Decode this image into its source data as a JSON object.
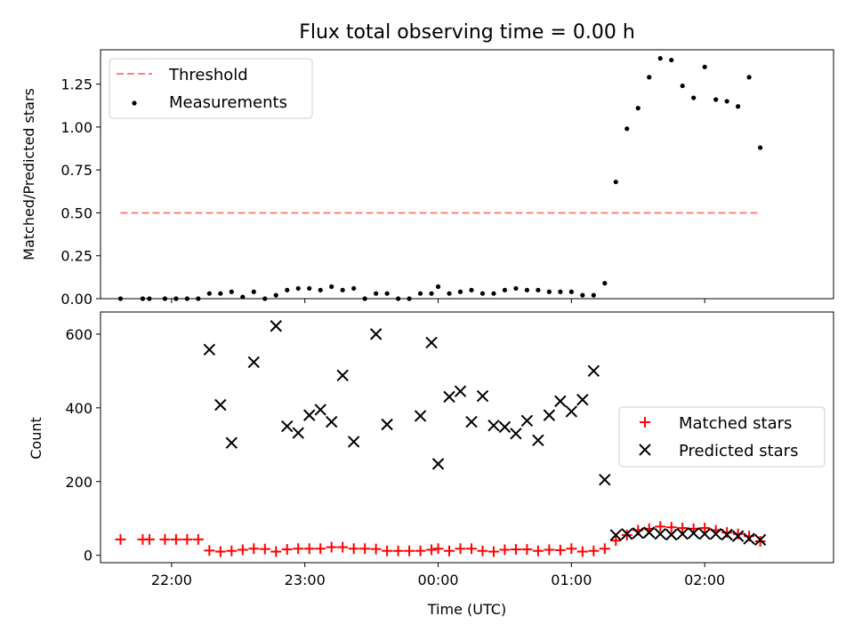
{
  "chart_data": [
    {
      "type": "scatter",
      "title": "Flux total observing time = 0.00 h",
      "xlabel": "",
      "ylabel": "Matched/Predicted stars",
      "xlim": [
        "21:28",
        "02:58"
      ],
      "ylim": [
        0,
        1.45
      ],
      "yticks": [
        "0.00",
        "0.25",
        "0.50",
        "0.75",
        "1.00",
        "1.25"
      ],
      "ytick_values": [
        0,
        0.25,
        0.5,
        0.75,
        1.0,
        1.25
      ],
      "xticks": [
        "22:00",
        "23:00",
        "00:00",
        "01:00",
        "02:00"
      ],
      "grid": false,
      "legend_position": "top-left",
      "legend": [
        "Threshold",
        "Measurements"
      ],
      "threshold": {
        "name": "Threshold",
        "value": 0.5,
        "x_range": [
          "21:37",
          "02:25"
        ],
        "color": "#ff7f7f",
        "style": "dashed"
      },
      "series": [
        {
          "name": "Measurements",
          "color": "#000000",
          "x": [
            "21:37",
            "21:47",
            "21:50",
            "21:57",
            "22:02",
            "22:07",
            "22:12",
            "22:17",
            "22:22",
            "22:27",
            "22:32",
            "22:37",
            "22:42",
            "22:47",
            "22:52",
            "22:57",
            "23:02",
            "23:07",
            "23:12",
            "23:17",
            "23:22",
            "23:27",
            "23:32",
            "23:37",
            "23:42",
            "23:47",
            "23:52",
            "23:57",
            "00:00",
            "00:05",
            "00:10",
            "00:15",
            "00:20",
            "00:25",
            "00:30",
            "00:35",
            "00:40",
            "00:45",
            "00:50",
            "00:55",
            "01:00",
            "01:05",
            "01:10",
            "01:15",
            "01:20",
            "01:25",
            "01:30",
            "01:35",
            "01:40",
            "01:45",
            "01:50",
            "01:55",
            "02:00",
            "02:05",
            "02:10",
            "02:15",
            "02:20",
            "02:25"
          ],
          "y": [
            0.0,
            0.0,
            0.0,
            0.0,
            0.0,
            0.0,
            0.0,
            0.03,
            0.03,
            0.04,
            0.01,
            0.04,
            0.0,
            0.02,
            0.05,
            0.06,
            0.06,
            0.05,
            0.07,
            0.05,
            0.06,
            0.0,
            0.03,
            0.03,
            0.0,
            0.0,
            0.03,
            0.03,
            0.07,
            0.03,
            0.04,
            0.05,
            0.03,
            0.03,
            0.05,
            0.06,
            0.05,
            0.05,
            0.04,
            0.04,
            0.04,
            0.02,
            0.02,
            0.09,
            0.68,
            0.99,
            1.11,
            1.29,
            1.4,
            1.39,
            1.24,
            1.17,
            1.35,
            1.16,
            1.15,
            1.12,
            1.29,
            0.88
          ]
        }
      ]
    },
    {
      "type": "scatter",
      "title": "",
      "xlabel": "Time (UTC)",
      "ylabel": "Count",
      "xlim": [
        "21:28",
        "02:58"
      ],
      "ylim": [
        -20,
        660
      ],
      "yticks": [
        "0",
        "200",
        "400",
        "600"
      ],
      "ytick_values": [
        0,
        200,
        400,
        600
      ],
      "xticks": [
        "22:00",
        "23:00",
        "00:00",
        "01:00",
        "02:00"
      ],
      "grid": false,
      "legend_position": "center-right",
      "legend": [
        "Matched stars",
        "Predicted stars"
      ],
      "series": [
        {
          "name": "Matched stars",
          "marker": "+",
          "color": "#ff0000",
          "x": [
            "21:37",
            "21:47",
            "21:50",
            "21:57",
            "22:02",
            "22:07",
            "22:12",
            "22:17",
            "22:22",
            "22:27",
            "22:32",
            "22:37",
            "22:42",
            "22:47",
            "22:52",
            "22:57",
            "23:02",
            "23:07",
            "23:12",
            "23:17",
            "23:22",
            "23:27",
            "23:32",
            "23:37",
            "23:42",
            "23:47",
            "23:52",
            "23:57",
            "00:00",
            "00:05",
            "00:10",
            "00:15",
            "00:20",
            "00:25",
            "00:30",
            "00:35",
            "00:40",
            "00:45",
            "00:50",
            "00:55",
            "01:00",
            "01:05",
            "01:10",
            "01:15",
            "01:20",
            "01:25",
            "01:30",
            "01:35",
            "01:40",
            "01:45",
            "01:50",
            "01:55",
            "02:00",
            "02:05",
            "02:10",
            "02:15",
            "02:20",
            "02:25"
          ],
          "y": [
            43,
            43,
            43,
            43,
            43,
            43,
            43,
            13,
            10,
            12,
            15,
            18,
            17,
            10,
            16,
            18,
            18,
            18,
            22,
            22,
            18,
            18,
            17,
            12,
            12,
            12,
            12,
            15,
            18,
            12,
            18,
            18,
            12,
            10,
            15,
            16,
            16,
            12,
            15,
            14,
            18,
            10,
            12,
            18,
            40,
            55,
            68,
            72,
            78,
            76,
            74,
            72,
            74,
            68,
            62,
            58,
            52,
            38
          ]
        },
        {
          "name": "Predicted stars",
          "marker": "x",
          "color": "#000000",
          "x": [
            "22:17",
            "22:22",
            "22:27",
            "22:37",
            "22:47",
            "22:52",
            "22:57",
            "23:02",
            "23:07",
            "23:12",
            "23:17",
            "23:22",
            "23:32",
            "23:37",
            "23:52",
            "23:57",
            "00:00",
            "00:05",
            "00:10",
            "00:15",
            "00:20",
            "00:25",
            "00:30",
            "00:35",
            "00:40",
            "00:45",
            "00:50",
            "00:55",
            "01:00",
            "01:05",
            "01:10",
            "01:15",
            "01:20",
            "01:25",
            "01:30",
            "01:35",
            "01:40",
            "01:45",
            "01:50",
            "01:55",
            "02:00",
            "02:05",
            "02:10",
            "02:15",
            "02:20",
            "02:25"
          ],
          "y": [
            558,
            408,
            305,
            524,
            622,
            350,
            332,
            380,
            395,
            362,
            488,
            308,
            600,
            355,
            378,
            577,
            248,
            430,
            445,
            362,
            432,
            352,
            348,
            330,
            365,
            312,
            380,
            418,
            390,
            422,
            500,
            205,
            55,
            58,
            60,
            62,
            58,
            56,
            58,
            60,
            58,
            58,
            56,
            52,
            45,
            42
          ]
        }
      ]
    }
  ]
}
